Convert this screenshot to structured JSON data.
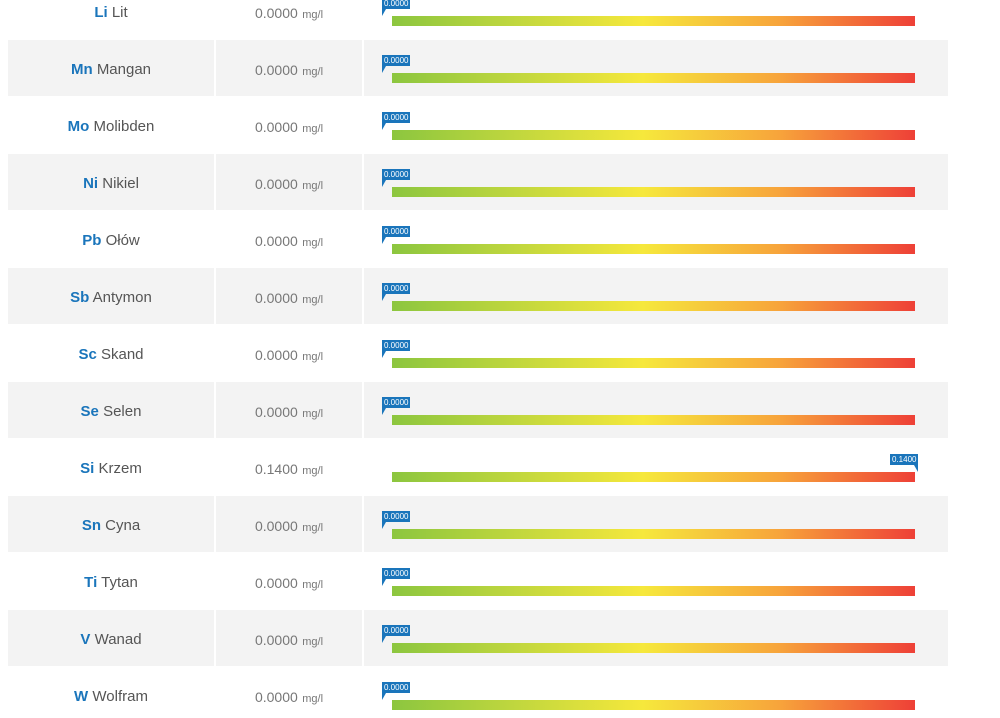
{
  "unit": "mg/l",
  "gauge_colors": [
    "#8cc63f",
    "#f6e83c",
    "#f7a43b",
    "#ee4037"
  ],
  "marker_color": "#1a75bb",
  "symbol_color": "#1a75bb",
  "rows": [
    {
      "symbol": "Li",
      "name": "Lit",
      "value": "0.0000",
      "level": 0
    },
    {
      "symbol": "Mn",
      "name": "Mangan",
      "value": "0.0000",
      "level": 0
    },
    {
      "symbol": "Mo",
      "name": "Molibden",
      "value": "0.0000",
      "level": 0
    },
    {
      "symbol": "Ni",
      "name": "Nikiel",
      "value": "0.0000",
      "level": 0
    },
    {
      "symbol": "Pb",
      "name": "Ołów",
      "value": "0.0000",
      "level": 0
    },
    {
      "symbol": "Sb",
      "name": "Antymon",
      "value": "0.0000",
      "level": 0
    },
    {
      "symbol": "Sc",
      "name": "Skand",
      "value": "0.0000",
      "level": 0
    },
    {
      "symbol": "Se",
      "name": "Selen",
      "value": "0.0000",
      "level": 0
    },
    {
      "symbol": "Si",
      "name": "Krzem",
      "value": "0.1400",
      "level": 1
    },
    {
      "symbol": "Sn",
      "name": "Cyna",
      "value": "0.0000",
      "level": 0
    },
    {
      "symbol": "Ti",
      "name": "Tytan",
      "value": "0.0000",
      "level": 0
    },
    {
      "symbol": "V",
      "name": "Wanad",
      "value": "0.0000",
      "level": 0
    },
    {
      "symbol": "W",
      "name": "Wolfram",
      "value": "0.0000",
      "level": 0
    }
  ]
}
